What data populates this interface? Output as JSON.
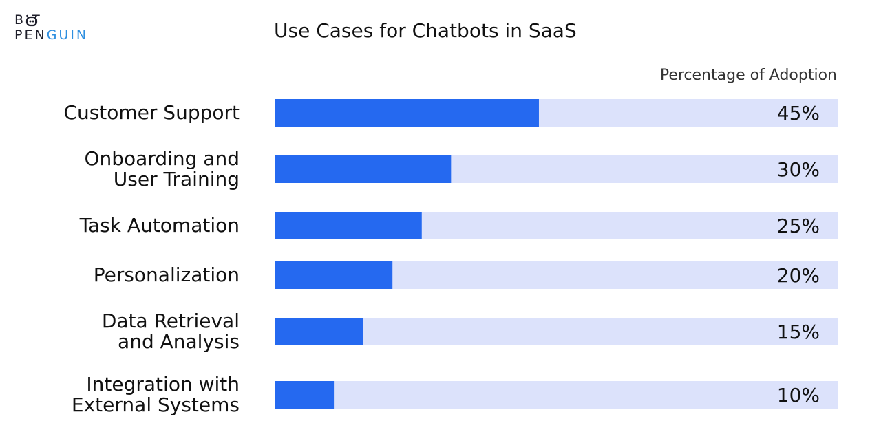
{
  "brand": {
    "line1": "B T",
    "line2_a": "PEN",
    "line2_b": "GUIN",
    "accent": "#2e8fe0"
  },
  "chart_data": {
    "type": "bar",
    "orientation": "horizontal",
    "title": "Use Cases for Chatbots in SaaS",
    "subtitle": "Percentage of Adoption",
    "categories": [
      [
        "Customer Support"
      ],
      [
        "Onboarding and",
        "User Training"
      ],
      [
        "Task Automation"
      ],
      [
        "Personalization"
      ],
      [
        "Data Retrieval",
        "and Analysis"
      ],
      [
        "Integration with",
        "External Systems"
      ]
    ],
    "values": [
      45,
      30,
      25,
      20,
      15,
      10
    ],
    "value_labels": [
      "45%",
      "30%",
      "25%",
      "20%",
      "15%",
      "10%"
    ],
    "xlim": [
      0,
      96
    ],
    "grid": false,
    "colors": {
      "bar": "#2569f0",
      "track": "#dce2fb",
      "text": "#111111"
    }
  }
}
